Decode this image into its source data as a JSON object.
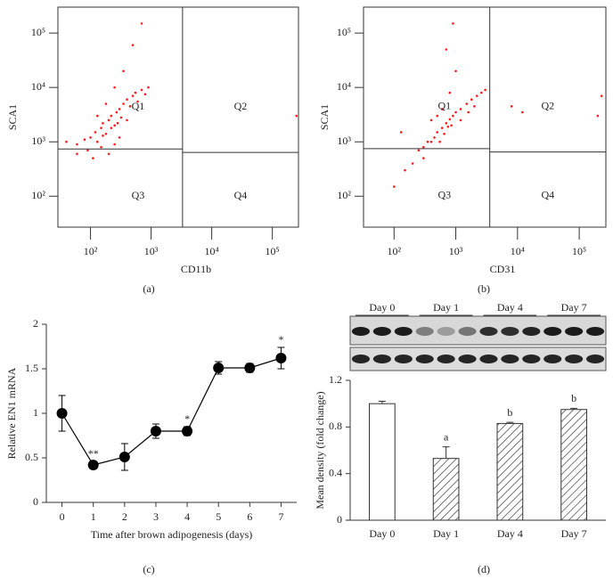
{
  "chart_data": [
    {
      "type": "scatter",
      "panel_label": "(a)",
      "xlabel": "CD11b",
      "ylabel": "SCA1",
      "log_x": true,
      "log_y": true,
      "color": "#ff1a1a",
      "xlim": [
        29,
        270000
      ],
      "ylim": [
        27,
        300000
      ],
      "xticks": [
        {
          "value": 100,
          "label": "10²"
        },
        {
          "value": 1000,
          "label": "10³"
        },
        {
          "value": 10000,
          "label": "10⁴"
        },
        {
          "value": 100000,
          "label": "10⁵"
        }
      ],
      "yticks": [
        {
          "value": 100,
          "label": "10²"
        },
        {
          "value": 1000,
          "label": "10³"
        },
        {
          "value": 10000,
          "label": "10⁴"
        },
        {
          "value": 100000,
          "label": "10⁵"
        }
      ],
      "gate": {
        "x": 3300,
        "y_left": 740,
        "y_right": 640
      },
      "quadrants": [
        "Q1",
        "Q2",
        "Q3",
        "Q4"
      ],
      "x": [
        60,
        80,
        100,
        120,
        130,
        150,
        160,
        180,
        200,
        220,
        250,
        270,
        300,
        320,
        350,
        400,
        450,
        500,
        550,
        600,
        700,
        800,
        150,
        250,
        90,
        110,
        200,
        300,
        400,
        180,
        250,
        350,
        500,
        700,
        40,
        60,
        900,
        130,
        220,
        280,
        160,
        250000
      ],
      "y": [
        900,
        1100,
        1200,
        1500,
        1000,
        1800,
        2200,
        1400,
        2500,
        3000,
        2000,
        3500,
        4000,
        2800,
        5000,
        6000,
        4500,
        7000,
        8000,
        5500,
        9000,
        7500,
        800,
        900,
        700,
        500,
        600,
        1200,
        2500,
        5000,
        10000,
        20000,
        60000,
        150000,
        1000,
        600,
        10000,
        3000,
        1800,
        2200,
        1300,
        3000
      ]
    },
    {
      "type": "scatter",
      "panel_label": "(b)",
      "xlabel": "CD31",
      "ylabel": "SCA1",
      "log_x": true,
      "log_y": true,
      "color": "#ff1a1a",
      "xlim": [
        32,
        270000
      ],
      "ylim": [
        27,
        300000
      ],
      "xticks": [
        {
          "value": 100,
          "label": "10²"
        },
        {
          "value": 1000,
          "label": "10³"
        },
        {
          "value": 10000,
          "label": "10⁴"
        },
        {
          "value": 100000,
          "label": "10⁵"
        }
      ],
      "yticks": [
        {
          "value": 100,
          "label": "10²"
        },
        {
          "value": 1000,
          "label": "10³"
        },
        {
          "value": 10000,
          "label": "10⁴"
        },
        {
          "value": 100000,
          "label": "10⁵"
        }
      ],
      "gate": {
        "x": 3550,
        "y_left": 750,
        "y_right": 650
      },
      "quadrants": [
        "Q1",
        "Q2",
        "Q3",
        "Q4"
      ],
      "x": [
        300,
        400,
        500,
        600,
        700,
        800,
        900,
        1000,
        1200,
        1500,
        1800,
        2200,
        2600,
        3000,
        450,
        550,
        650,
        750,
        850,
        400,
        600,
        800,
        1000,
        700,
        900,
        300,
        200,
        150,
        100,
        250,
        1200,
        1600,
        2000,
        500,
        8000,
        12000,
        200000,
        230000,
        130,
        350
      ],
      "y": [
        800,
        1000,
        1500,
        1800,
        2200,
        2600,
        3000,
        3500,
        4000,
        5000,
        6000,
        7000,
        8000,
        9000,
        1200,
        1000,
        1400,
        1900,
        2000,
        2500,
        4000,
        8000,
        20000,
        50000,
        150000,
        500,
        400,
        300,
        150,
        700,
        2500,
        3500,
        4500,
        3000,
        4500,
        3500,
        3000,
        7000,
        1500,
        1000
      ]
    },
    {
      "type": "line",
      "panel_label": "(c)",
      "xlabel": "Time after brown adipogenesis (days)",
      "ylabel": "Relative EN1 mRNA",
      "x": [
        0,
        1,
        2,
        3,
        4,
        5,
        6,
        7
      ],
      "values": [
        1.0,
        0.42,
        0.51,
        0.8,
        0.8,
        1.51,
        1.51,
        1.62
      ],
      "errors": [
        0.2,
        0.04,
        0.15,
        0.08,
        0.05,
        0.07,
        0.05,
        0.12
      ],
      "annotations": [
        null,
        "**",
        null,
        null,
        "*",
        null,
        null,
        "*"
      ],
      "xlim": [
        -0.5,
        7.5
      ],
      "ylim": [
        0,
        2
      ],
      "xticks": [
        0,
        1,
        2,
        3,
        4,
        5,
        6,
        7
      ],
      "yticks": [
        0,
        0.5,
        1,
        1.5,
        2
      ],
      "color": "#000000"
    },
    {
      "type": "bar",
      "panel_label": "(d)",
      "ylabel": "Mean density (fold change)",
      "blot_labels": [
        "Day 0",
        "Day 1",
        "Day 4",
        "Day 7"
      ],
      "categories": [
        "Day 0",
        "Day 1",
        "Day 4",
        "Day 7"
      ],
      "values": [
        1.0,
        0.53,
        0.83,
        0.95
      ],
      "errors": [
        0.02,
        0.1,
        0.01,
        0.01
      ],
      "annotations": [
        null,
        "a",
        "b",
        "b"
      ],
      "fills": [
        "white",
        "hatch",
        "hatch",
        "hatch"
      ],
      "ylim": [
        0,
        1.2
      ],
      "yticks": [
        0,
        0.4,
        0.8,
        1.2
      ]
    }
  ]
}
